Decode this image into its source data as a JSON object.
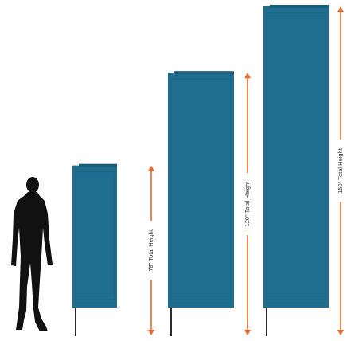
{
  "colors": {
    "banner": "#1f6d8f",
    "banner_shade": "#195d7b",
    "pole": "#2b2b2b",
    "arrow": "#e8692e",
    "person": "#111111",
    "label": "#333333"
  },
  "banners": [
    {
      "name": "small",
      "height_in": 78,
      "label": "78\" Total Height"
    },
    {
      "name": "medium",
      "height_in": 120,
      "label": "120\" Total Height"
    },
    {
      "name": "large",
      "height_in": 150,
      "label": "150\" Total Height"
    }
  ],
  "icons": {
    "person": "person-silhouette-icon",
    "arrow": "double-arrow-icon"
  }
}
